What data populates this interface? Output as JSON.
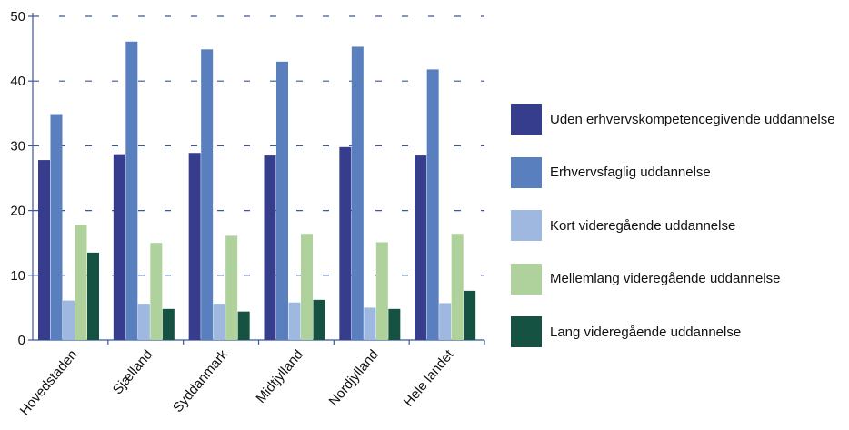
{
  "chart_data": {
    "type": "bar",
    "categories": [
      "Hovedstaden",
      "Sjælland",
      "Syddanmark",
      "Midtjylland",
      "Nordjylland",
      "Hele landet"
    ],
    "series": [
      {
        "name": "Uden erhvervskompetencegivende uddannelse",
        "color": "#353d8c",
        "values": [
          27.8,
          28.7,
          28.9,
          28.5,
          29.8,
          28.5
        ]
      },
      {
        "name": "Erhvervsfaglig uddannelse",
        "color": "#5a7fbf",
        "values": [
          34.9,
          46.1,
          44.9,
          43.0,
          45.3,
          41.8
        ]
      },
      {
        "name": "Kort videregående uddannelse",
        "color": "#9fb8e0",
        "values": [
          6.1,
          5.6,
          5.6,
          5.8,
          5.0,
          5.7
        ]
      },
      {
        "name": "Mellemlang videregående uddannelse",
        "color": "#afd19b",
        "values": [
          17.8,
          15.0,
          16.1,
          16.4,
          15.1,
          16.4
        ]
      },
      {
        "name": "Lang videregående uddannelse",
        "color": "#155241",
        "values": [
          13.5,
          4.8,
          4.4,
          6.2,
          4.8,
          7.6
        ]
      }
    ],
    "yticks": [
      0,
      10,
      20,
      30,
      40,
      50
    ],
    "ylim": [
      0,
      50
    ],
    "grid": "dashed-horizontal",
    "legend_position": "right"
  }
}
